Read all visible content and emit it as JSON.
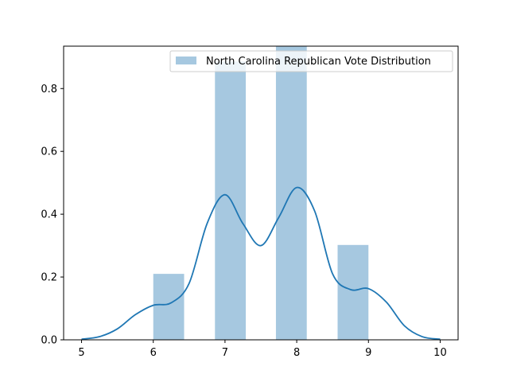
{
  "chart_data": {
    "type": "bar",
    "title": "",
    "xlabel": "",
    "ylabel": "",
    "xlim": [
      4.75,
      10.25
    ],
    "ylim": [
      0,
      0.935
    ],
    "x_ticks": [
      5,
      6,
      7,
      8,
      9,
      10
    ],
    "x_tick_labels": [
      "5",
      "6",
      "7",
      "8",
      "9",
      "10"
    ],
    "y_ticks": [
      0,
      0.2,
      0.4,
      0.6,
      0.8
    ],
    "y_tick_labels": [
      "0.0",
      "0.2",
      "0.4",
      "0.6",
      "0.8"
    ],
    "grid": false,
    "legend_position": "top-right",
    "series": [
      {
        "name": "North Carolina Republican Vote Distribution",
        "kind": "histogram",
        "color": "#a6c8e0",
        "bins": [
          {
            "x0": 6.0,
            "x1": 6.43,
            "value": 0.21
          },
          {
            "x0": 6.86,
            "x1": 7.29,
            "value": 0.886
          },
          {
            "x0": 7.71,
            "x1": 8.14,
            "value": 0.935
          },
          {
            "x0": 8.57,
            "x1": 9.0,
            "value": 0.302
          }
        ]
      },
      {
        "name": "",
        "kind": "kde",
        "color": "#1f77b4",
        "x": [
          5.0,
          5.25,
          5.5,
          5.75,
          6.0,
          6.25,
          6.5,
          6.75,
          7.0,
          7.25,
          7.5,
          7.75,
          8.0,
          8.25,
          8.5,
          8.75,
          9.0,
          9.25,
          9.5,
          9.75,
          10.0
        ],
        "y": [
          0.002,
          0.01,
          0.035,
          0.08,
          0.11,
          0.118,
          0.18,
          0.37,
          0.462,
          0.37,
          0.3,
          0.39,
          0.485,
          0.41,
          0.21,
          0.16,
          0.163,
          0.12,
          0.045,
          0.01,
          0.002
        ]
      }
    ]
  }
}
